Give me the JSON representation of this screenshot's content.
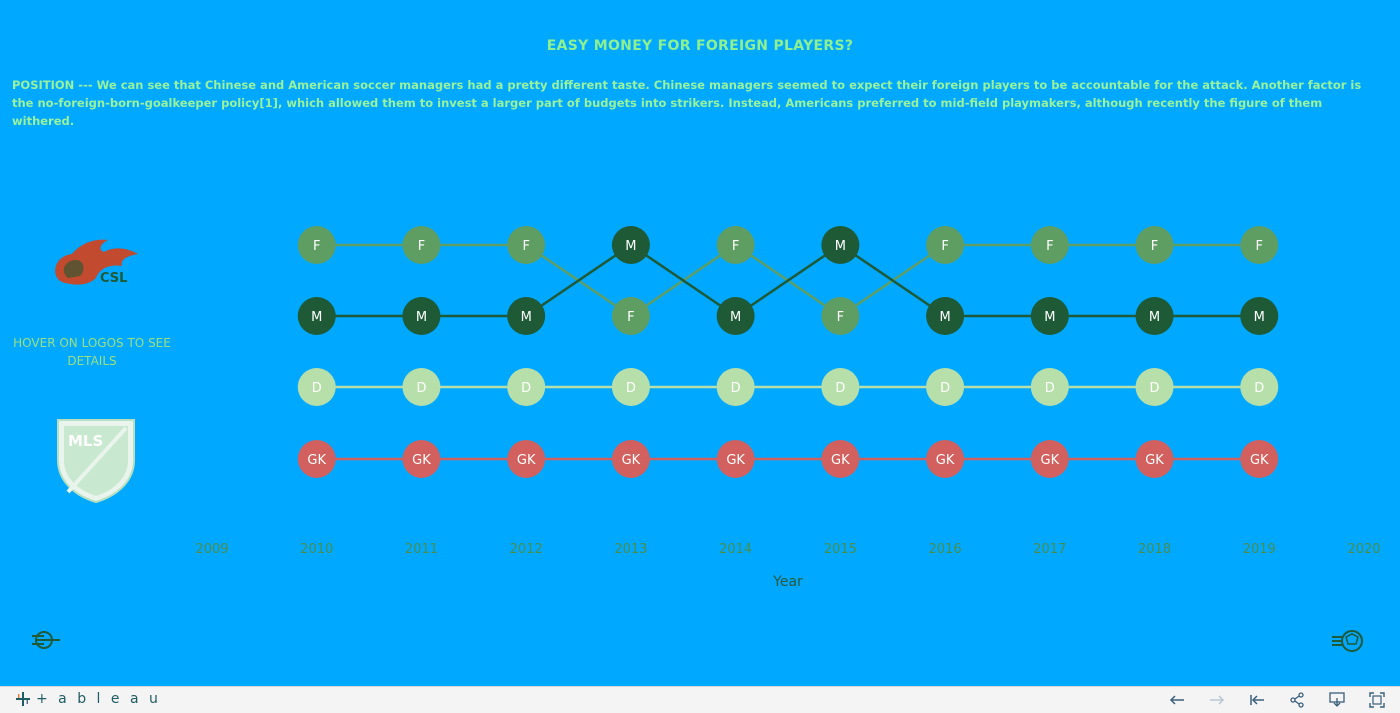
{
  "header": {
    "title": "EASY MONEY FOR FOREIGN PLAYERS?",
    "description": "POSITION --- We can see that Chinese and American soccer managers had a pretty different taste. Chinese managers seemed to expect their foreign players to be accountable for the attack. Another factor is the no-foreign-born-goalkeeper policy[1], which allowed them to invest a larger part of budgets into strikers. Instead, Americans preferred to mid-field playmakers, although recently the figure of them withered."
  },
  "side": {
    "hover_note": "HOVER ON LOGOS TO SEE DETAILS",
    "csl_logo": "csl-logo",
    "mls_logo": "mls-logo",
    "csl_logo_text": "CSL",
    "mls_logo_text": "MLS"
  },
  "colors": {
    "background": "#00a8ff",
    "F": "#5f9e62",
    "M": "#1e5a35",
    "D": "#b7dfa9",
    "GK": "#d2605e",
    "title": "#8ff08f"
  },
  "chart_data": {
    "type": "line",
    "title": "EASY MONEY FOR FOREIGN PLAYERS?",
    "xlabel": "Year",
    "ylabel": "",
    "x_ticks": [
      "2009",
      "2010",
      "2011",
      "2012",
      "2013",
      "2014",
      "2015",
      "2016",
      "2017",
      "2018",
      "2019",
      "2020"
    ],
    "xlim": [
      2009,
      2020
    ],
    "x": [
      2010,
      2011,
      2012,
      2013,
      2014,
      2015,
      2016,
      2017,
      2018,
      2019
    ],
    "note": "rank of position (1 = top row)",
    "series": [
      {
        "name": "F",
        "ranks": [
          1,
          1,
          1,
          2,
          1,
          2,
          1,
          1,
          1,
          1
        ]
      },
      {
        "name": "M",
        "ranks": [
          2,
          2,
          2,
          1,
          2,
          1,
          2,
          2,
          2,
          2
        ]
      },
      {
        "name": "D",
        "ranks": [
          3,
          3,
          3,
          3,
          3,
          3,
          3,
          3,
          3,
          3
        ]
      },
      {
        "name": "GK",
        "ranks": [
          4,
          4,
          4,
          4,
          4,
          4,
          4,
          4,
          4,
          4
        ]
      }
    ],
    "grid": false
  },
  "toolbar": {
    "brand": "+ a b l e a u",
    "icons": [
      "undo-icon",
      "redo-icon",
      "revert-icon",
      "share-icon",
      "download-icon",
      "fullscreen-icon"
    ]
  },
  "corner_icons": [
    "left-ball-icon",
    "right-ball-icon"
  ]
}
